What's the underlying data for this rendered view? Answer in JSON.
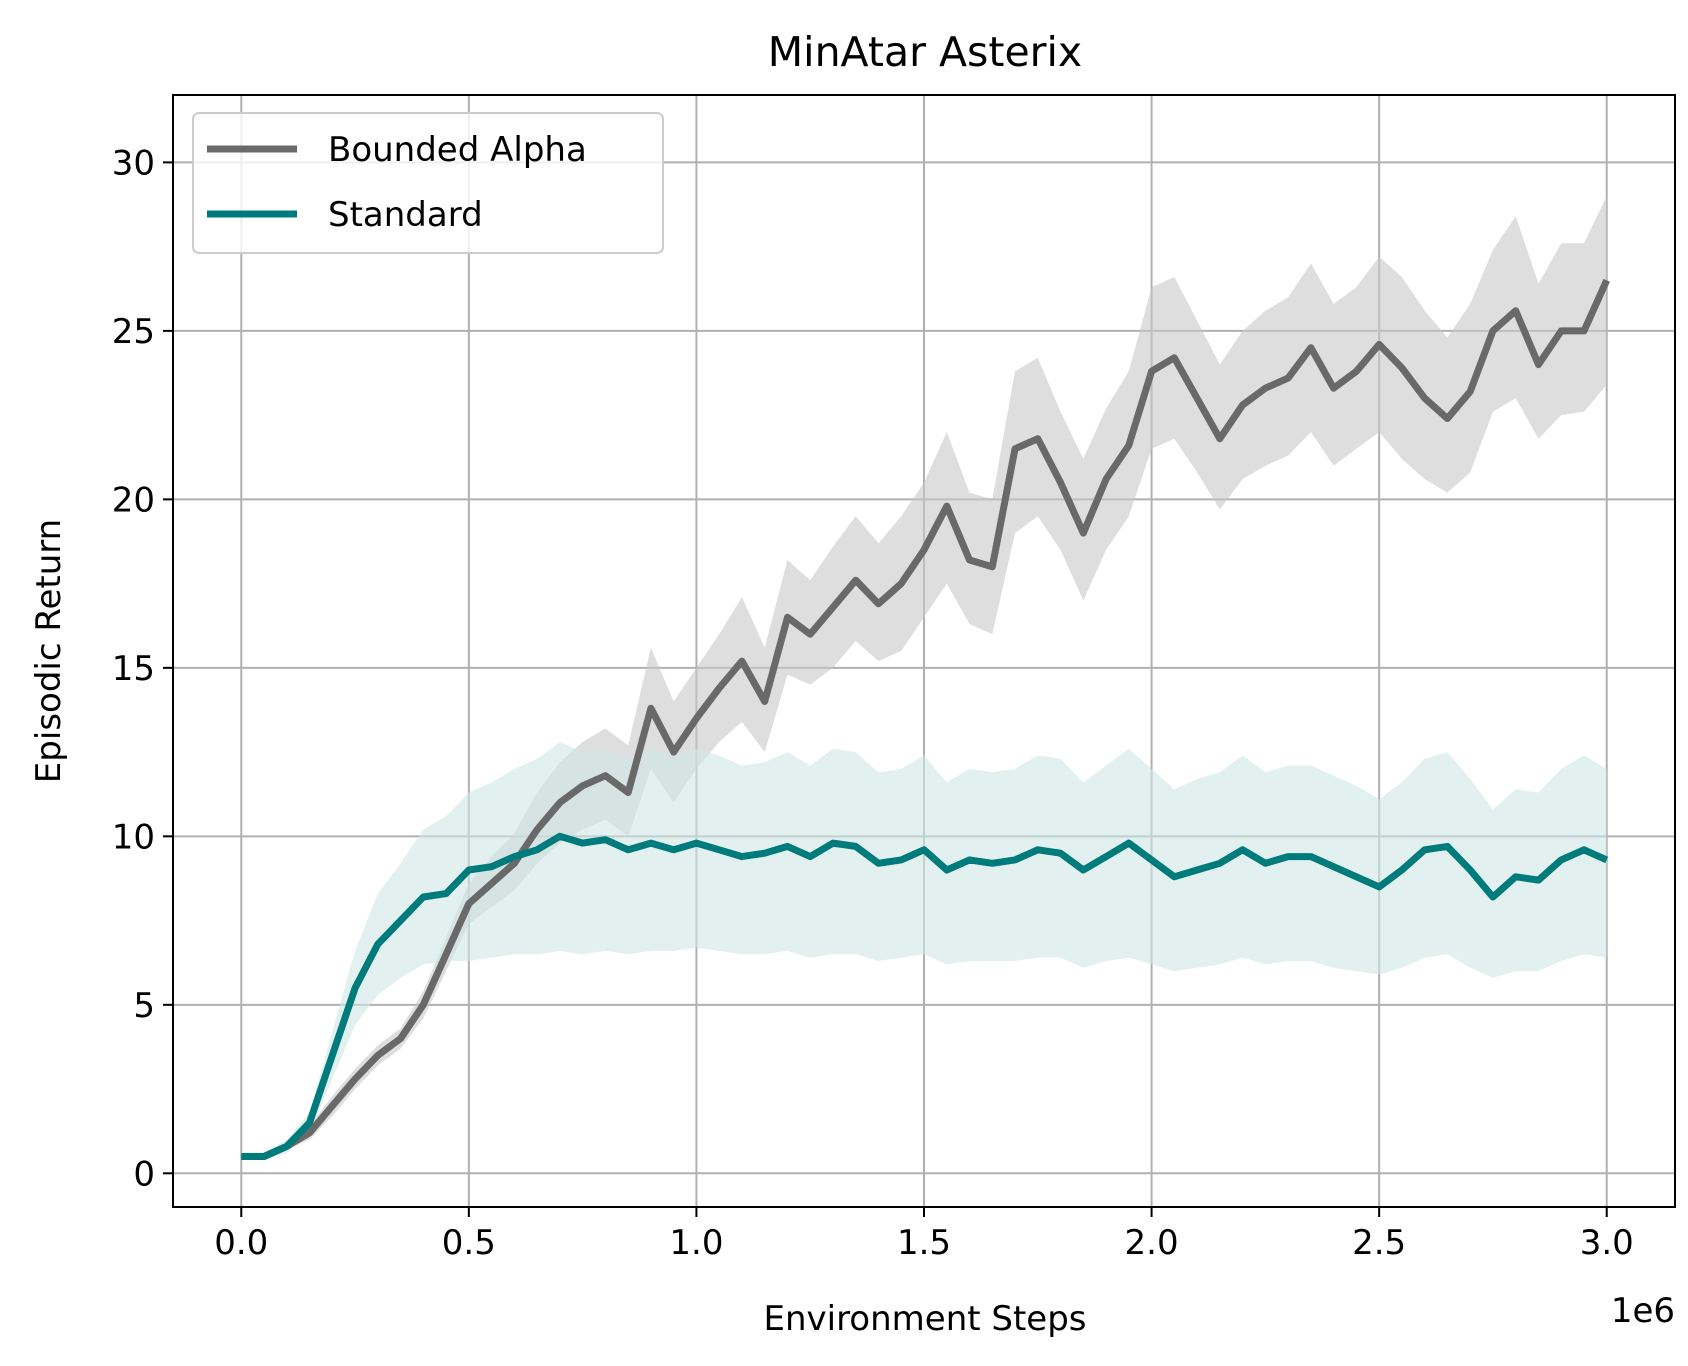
{
  "chart_data": {
    "type": "line",
    "title": "MinAtar Asterix",
    "xlabel": "Environment Steps",
    "ylabel": "Episodic Return",
    "x_offset_label": "1e6",
    "xlim": [
      -150000,
      3150000
    ],
    "ylim": [
      -1,
      32
    ],
    "xticks": [
      0,
      500000,
      1000000,
      1500000,
      2000000,
      2500000,
      3000000
    ],
    "xtick_labels": [
      "0.0",
      "0.5",
      "1.0",
      "1.5",
      "2.0",
      "2.5",
      "3.0"
    ],
    "yticks": [
      0,
      5,
      10,
      15,
      20,
      25,
      30
    ],
    "ytick_labels": [
      "0",
      "5",
      "10",
      "15",
      "20",
      "25",
      "30"
    ],
    "grid": true,
    "legend_position": "upper-left",
    "x": [
      0,
      50000,
      100000,
      150000,
      200000,
      250000,
      300000,
      350000,
      400000,
      450000,
      500000,
      550000,
      600000,
      650000,
      700000,
      750000,
      800000,
      850000,
      900000,
      950000,
      1000000,
      1050000,
      1100000,
      1150000,
      1200000,
      1250000,
      1300000,
      1350000,
      1400000,
      1450000,
      1500000,
      1550000,
      1600000,
      1650000,
      1700000,
      1750000,
      1800000,
      1850000,
      1900000,
      1950000,
      2000000,
      2050000,
      2100000,
      2150000,
      2200000,
      2250000,
      2300000,
      2350000,
      2400000,
      2450000,
      2500000,
      2550000,
      2600000,
      2650000,
      2700000,
      2750000,
      2800000,
      2850000,
      2900000,
      2950000,
      3000000
    ],
    "series": [
      {
        "name": "Bounded Alpha",
        "color": "#696969",
        "band_color": "#c8c8c8",
        "values": [
          0.5,
          0.5,
          0.8,
          1.2,
          2.0,
          2.8,
          3.5,
          4.0,
          5.0,
          6.5,
          8.0,
          8.6,
          9.2,
          10.2,
          11.0,
          11.5,
          11.8,
          11.3,
          13.8,
          12.5,
          13.5,
          14.4,
          15.2,
          14.0,
          16.5,
          16.0,
          16.8,
          17.6,
          16.9,
          17.5,
          18.5,
          19.8,
          18.2,
          18.0,
          21.5,
          21.8,
          20.5,
          19.0,
          20.6,
          21.6,
          23.8,
          24.2,
          23.0,
          21.8,
          22.8,
          23.3,
          23.6,
          24.5,
          23.3,
          23.8,
          24.6,
          23.9,
          23.0,
          22.4,
          23.2,
          25.0,
          25.6,
          24.0,
          25.0,
          25.0,
          26.5
        ],
        "lower": [
          0.4,
          0.4,
          0.7,
          1.0,
          1.7,
          2.5,
          3.2,
          3.7,
          4.6,
          6.0,
          7.4,
          7.9,
          8.4,
          9.2,
          9.8,
          10.2,
          10.5,
          10.0,
          12.0,
          11.0,
          12.0,
          12.8,
          13.4,
          12.5,
          14.8,
          14.5,
          15.0,
          15.8,
          15.2,
          15.5,
          16.5,
          17.5,
          16.3,
          16.0,
          19.0,
          19.5,
          18.5,
          17.0,
          18.5,
          19.5,
          21.5,
          21.8,
          20.8,
          19.7,
          20.6,
          21.0,
          21.3,
          22.0,
          21.0,
          21.5,
          22.0,
          21.2,
          20.6,
          20.2,
          20.8,
          22.6,
          23.0,
          21.8,
          22.5,
          22.6,
          23.4
        ],
        "upper": [
          0.6,
          0.6,
          0.9,
          1.4,
          2.3,
          3.1,
          3.8,
          4.3,
          5.4,
          7.0,
          8.6,
          9.4,
          10.1,
          11.3,
          12.2,
          12.8,
          13.2,
          12.7,
          15.6,
          14.0,
          15.0,
          16.0,
          17.1,
          15.6,
          18.2,
          17.6,
          18.6,
          19.5,
          18.7,
          19.5,
          20.5,
          22.0,
          20.2,
          20.0,
          23.8,
          24.2,
          22.6,
          21.2,
          22.7,
          23.8,
          26.3,
          26.6,
          25.3,
          24.0,
          25.0,
          25.6,
          26.0,
          27.0,
          25.8,
          26.3,
          27.2,
          26.6,
          25.6,
          24.8,
          25.8,
          27.4,
          28.4,
          26.4,
          27.6,
          27.6,
          29.0
        ]
      },
      {
        "name": "Standard",
        "color": "#007b7b",
        "band_color": "#cfe6e6",
        "values": [
          0.5,
          0.5,
          0.8,
          1.5,
          3.5,
          5.5,
          6.8,
          7.5,
          8.2,
          8.3,
          9.0,
          9.1,
          9.4,
          9.6,
          10.0,
          9.8,
          9.9,
          9.6,
          9.8,
          9.6,
          9.8,
          9.6,
          9.4,
          9.5,
          9.7,
          9.4,
          9.8,
          9.7,
          9.2,
          9.3,
          9.6,
          9.0,
          9.3,
          9.2,
          9.3,
          9.6,
          9.5,
          9.0,
          9.4,
          9.8,
          9.3,
          8.8,
          9.0,
          9.2,
          9.6,
          9.2,
          9.4,
          9.4,
          9.1,
          8.8,
          8.5,
          9.0,
          9.6,
          9.7,
          9.0,
          8.2,
          8.8,
          8.7,
          9.3,
          9.6,
          9.3
        ],
        "lower": [
          0.4,
          0.4,
          0.6,
          1.2,
          2.8,
          4.4,
          5.3,
          5.8,
          6.2,
          6.3,
          6.3,
          6.4,
          6.5,
          6.5,
          6.6,
          6.5,
          6.6,
          6.5,
          6.6,
          6.6,
          6.7,
          6.6,
          6.5,
          6.5,
          6.6,
          6.4,
          6.5,
          6.5,
          6.3,
          6.4,
          6.5,
          6.2,
          6.3,
          6.3,
          6.3,
          6.4,
          6.4,
          6.1,
          6.3,
          6.4,
          6.2,
          6.0,
          6.1,
          6.2,
          6.4,
          6.2,
          6.3,
          6.3,
          6.1,
          6.0,
          5.9,
          6.1,
          6.4,
          6.5,
          6.1,
          5.8,
          6.0,
          6.0,
          6.3,
          6.5,
          6.4
        ],
        "upper": [
          0.6,
          0.6,
          1.0,
          1.8,
          4.2,
          6.6,
          8.3,
          9.2,
          10.2,
          10.6,
          11.3,
          11.6,
          12.0,
          12.3,
          12.8,
          12.5,
          12.6,
          12.3,
          12.6,
          12.4,
          12.6,
          12.4,
          12.1,
          12.2,
          12.5,
          12.1,
          12.6,
          12.5,
          11.9,
          12.0,
          12.4,
          11.6,
          12.0,
          11.9,
          12.0,
          12.4,
          12.3,
          11.6,
          12.1,
          12.6,
          12.0,
          11.4,
          11.7,
          11.9,
          12.4,
          11.9,
          12.1,
          12.1,
          11.8,
          11.5,
          11.1,
          11.6,
          12.3,
          12.5,
          11.7,
          10.8,
          11.4,
          11.3,
          12.0,
          12.4,
          12.0
        ]
      }
    ]
  }
}
